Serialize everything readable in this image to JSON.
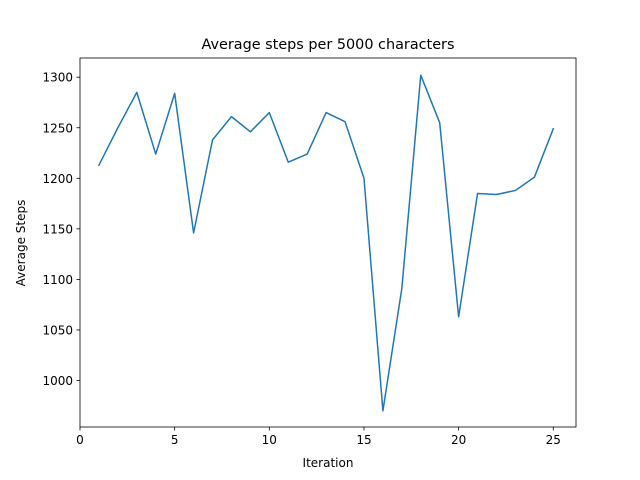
{
  "chart_data": {
    "type": "line",
    "title": "Average steps per 5000 characters",
    "xlabel": "Iteration",
    "ylabel": "Average Steps",
    "xlim": [
      0,
      26.2
    ],
    "ylim": [
      954,
      1319
    ],
    "xticks": [
      0,
      5,
      10,
      15,
      20,
      25
    ],
    "yticks": [
      1000,
      1050,
      1100,
      1150,
      1200,
      1250,
      1300
    ],
    "grid": false,
    "series": [
      {
        "color": "#1f77b4",
        "x": [
          1,
          2,
          3,
          4,
          5,
          6,
          7,
          8,
          9,
          10,
          11,
          12,
          13,
          14,
          15,
          16,
          17,
          18,
          19,
          20,
          21,
          22,
          23,
          24,
          25
        ],
        "values": [
          1213,
          1250,
          1285,
          1224,
          1284,
          1146,
          1238,
          1261,
          1246,
          1265,
          1216,
          1224,
          1265,
          1256,
          1200,
          970,
          1091,
          1302,
          1255,
          1063,
          1185,
          1184,
          1188,
          1201,
          1249
        ]
      }
    ]
  }
}
